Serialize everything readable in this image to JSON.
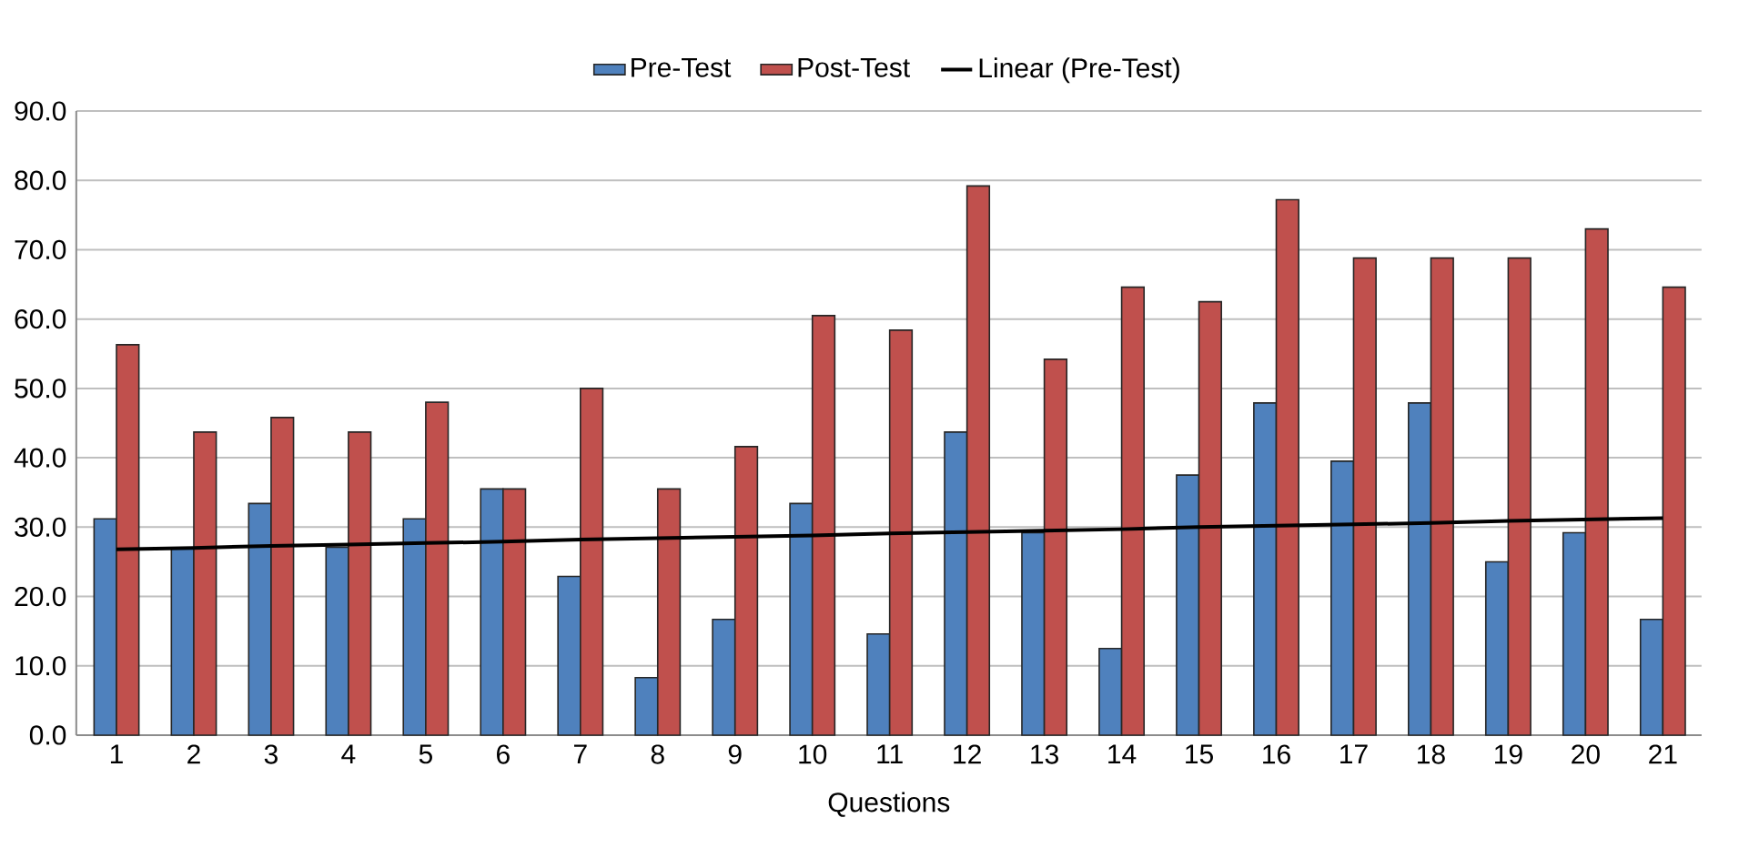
{
  "chart_data": {
    "type": "bar",
    "xlabel": "Questions",
    "categories": [
      "1",
      "2",
      "3",
      "4",
      "5",
      "6",
      "7",
      "8",
      "9",
      "10",
      "11",
      "12",
      "13",
      "14",
      "15",
      "16",
      "17",
      "18",
      "19",
      "20",
      "21"
    ],
    "series": [
      {
        "name": "Pre-Test",
        "color": "#4f81bd",
        "values": [
          31.2,
          26.9,
          33.4,
          27.1,
          31.2,
          35.5,
          22.9,
          8.3,
          16.7,
          33.4,
          14.6,
          43.7,
          29.2,
          12.5,
          37.5,
          47.9,
          39.5,
          47.9,
          25.0,
          29.2,
          16.7
        ]
      },
      {
        "name": "Post-Test",
        "color": "#c0504d",
        "values": [
          56.3,
          43.7,
          45.8,
          43.7,
          48.0,
          35.5,
          50.0,
          35.5,
          41.6,
          60.5,
          58.4,
          79.2,
          54.2,
          64.6,
          62.5,
          77.2,
          68.8,
          68.8,
          68.8,
          73.0,
          64.6
        ]
      },
      {
        "name": "Linear (Pre-Test)",
        "type": "line",
        "color": "#000000",
        "values": [
          26.8,
          27.0,
          27.3,
          27.5,
          27.7,
          27.9,
          28.2,
          28.4,
          28.6,
          28.8,
          29.1,
          29.3,
          29.5,
          29.7,
          30.0,
          30.2,
          30.4,
          30.6,
          30.9,
          31.1,
          31.3
        ]
      }
    ],
    "ylim": [
      0,
      90
    ],
    "yticks": [
      {
        "value": 0,
        "label": "0.0"
      },
      {
        "value": 10,
        "label": "10.0"
      },
      {
        "value": 20,
        "label": "20.0"
      },
      {
        "value": 30,
        "label": "30.0"
      },
      {
        "value": 40,
        "label": "40.0"
      },
      {
        "value": 50,
        "label": "50.0"
      },
      {
        "value": 60,
        "label": "60.0"
      },
      {
        "value": 70,
        "label": "70.0"
      },
      {
        "value": 80,
        "label": "80.0"
      },
      {
        "value": 90,
        "label": "90.0"
      }
    ],
    "grid": "y",
    "legend": "top"
  }
}
